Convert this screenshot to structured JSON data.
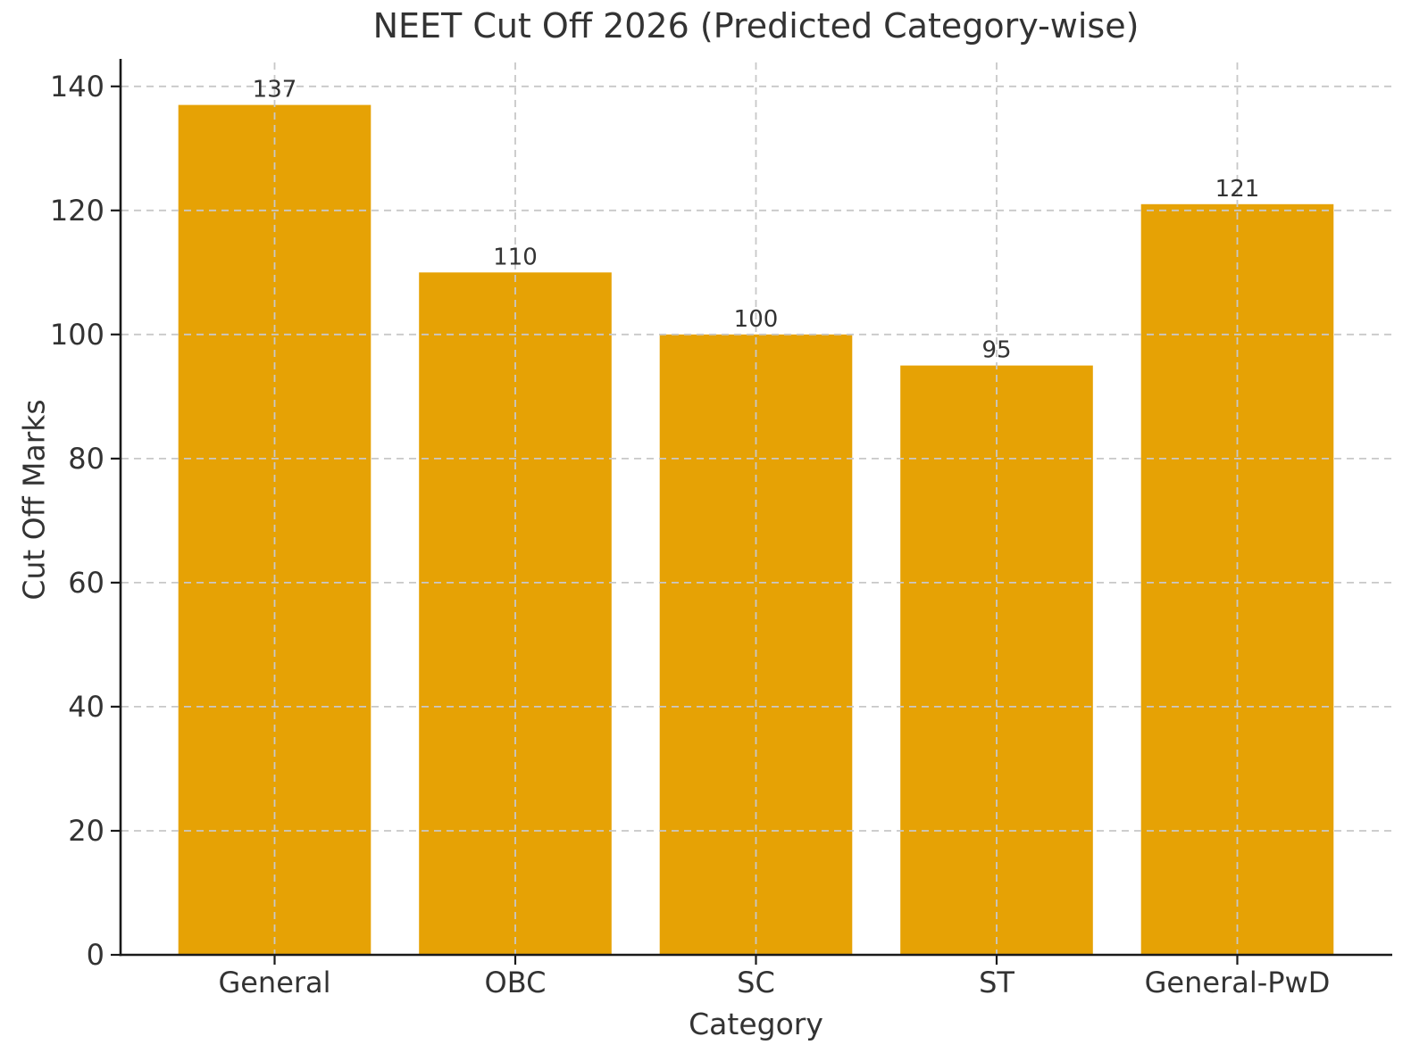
{
  "chart_data": {
    "type": "bar",
    "title": "NEET Cut Off 2026 (Predicted Category-wise)",
    "xlabel": "Category",
    "ylabel": "Cut Off Marks",
    "categories": [
      "General",
      "OBC",
      "SC",
      "ST",
      "General-PwD"
    ],
    "values": [
      137,
      110,
      100,
      95,
      121
    ],
    "value_labels": [
      "137",
      "110",
      "100",
      "95",
      "121"
    ],
    "yticks": [
      0,
      20,
      40,
      60,
      80,
      100,
      120,
      140
    ],
    "ylim": [
      0,
      143.85
    ],
    "grid": "dashed, horizontal and vertical, drawn over bars",
    "legend": "none",
    "bar_color": "#E6A205",
    "grid_color": "#c8c8c8",
    "spine_color": "#1a1a1a",
    "text_color": "#333333",
    "background_color": "#ffffff"
  }
}
